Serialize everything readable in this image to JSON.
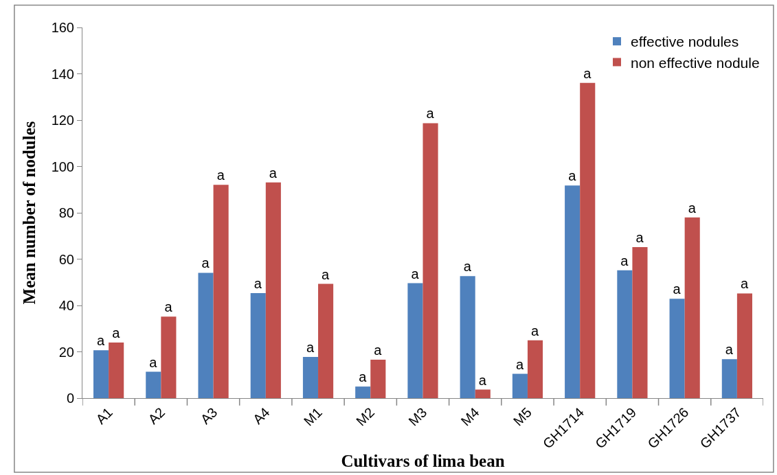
{
  "chart_data": {
    "type": "bar",
    "xlabel": "Cultivars of lima bean",
    "ylabel": "Mean number of nodules",
    "categories": [
      "A1",
      "A2",
      "A3",
      "A4",
      "M1",
      "M2",
      "M3",
      "M4",
      "M5",
      "GH1714",
      "GH1719",
      "GH1726",
      "GH1737"
    ],
    "series": [
      {
        "name": "effective nodules",
        "color": "#4f81bd",
        "values": [
          20.7,
          11.4,
          54.1,
          45.3,
          17.8,
          5.0,
          49.6,
          52.7,
          10.5,
          91.8,
          55.2,
          42.9,
          16.8
        ],
        "value_labels": [
          "a",
          "a",
          "a",
          "a",
          "a",
          "a",
          "a",
          "a",
          "a",
          "a",
          "a",
          "a",
          "a"
        ]
      },
      {
        "name": "non effective nodule",
        "color": "#c0504d",
        "values": [
          24.0,
          35.2,
          92.1,
          93.1,
          49.3,
          16.6,
          118.7,
          3.7,
          25.0,
          136.1,
          65.2,
          78.0,
          45.2
        ],
        "value_labels": [
          "a",
          "a",
          "a",
          "a",
          "a",
          "a",
          "a",
          "a",
          "a",
          "a",
          "a",
          "a",
          "a"
        ]
      }
    ],
    "ylim": [
      0,
      160
    ],
    "yticks": [
      0,
      20,
      40,
      60,
      80,
      100,
      120,
      140,
      160
    ],
    "legend": "top right"
  }
}
